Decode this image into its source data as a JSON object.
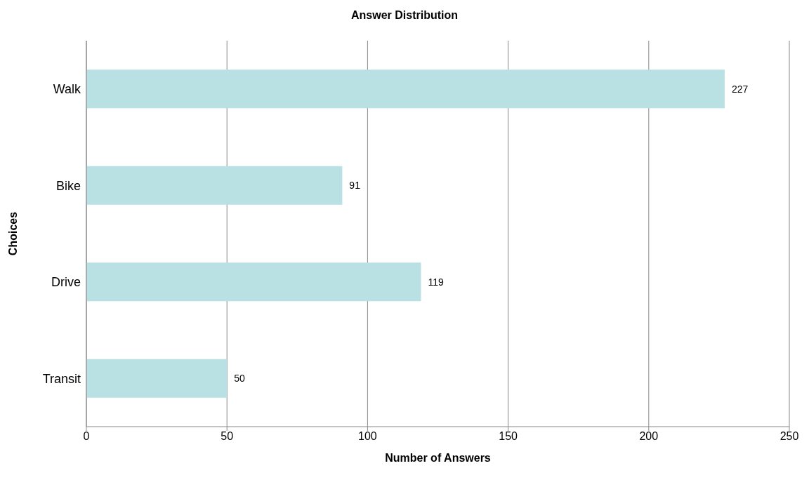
{
  "chart_data": {
    "type": "bar",
    "orientation": "horizontal",
    "title": "Answer Distribution",
    "xlabel": "Number of Answers",
    "ylabel": "Choices",
    "categories": [
      "Walk",
      "Bike",
      "Drive",
      "Transit"
    ],
    "values": [
      227,
      91,
      119,
      50
    ],
    "color": "#b9e0e3",
    "xlim": [
      0,
      250
    ],
    "xticks": [
      0,
      50,
      100,
      150,
      200,
      250
    ],
    "grid": "x",
    "data_labels": true
  }
}
